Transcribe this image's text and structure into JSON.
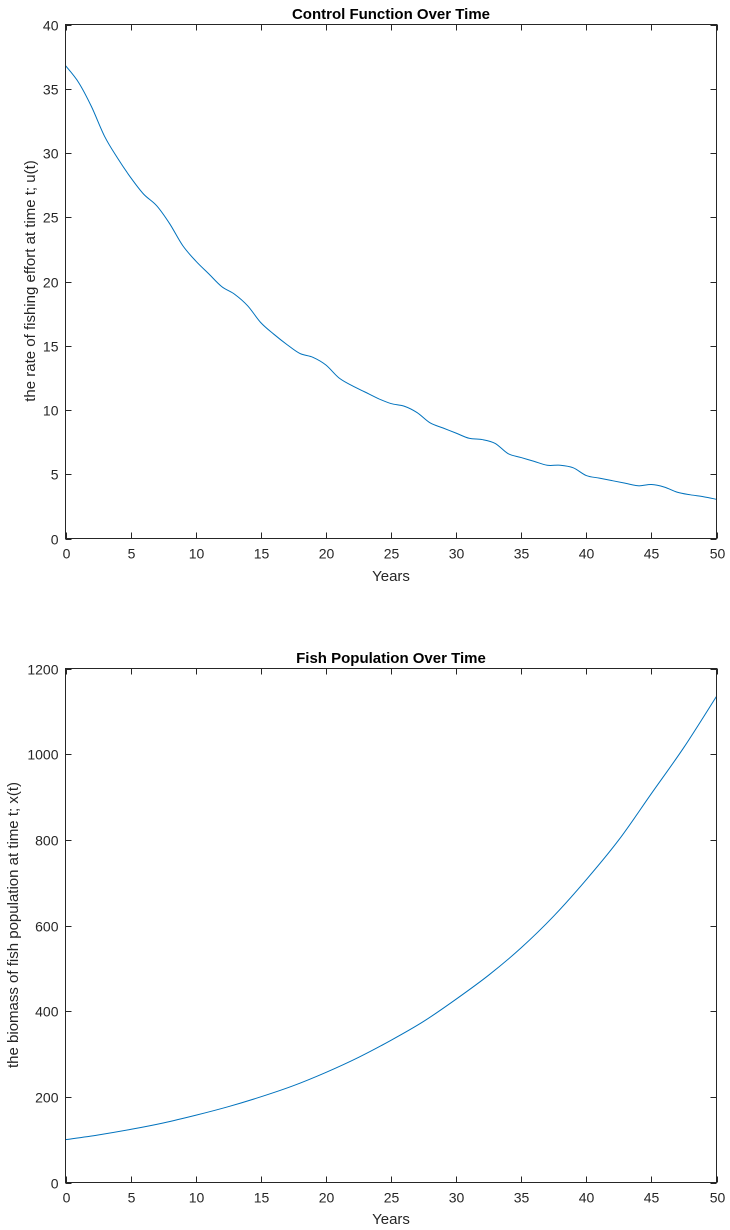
{
  "chart_data": [
    {
      "type": "line",
      "title": "Control Function Over Time",
      "xlabel": "Years",
      "ylabel": "the rate of fishing effort at time t; u(t)",
      "xlim": [
        0,
        50
      ],
      "ylim": [
        0,
        40
      ],
      "xticks": [
        0,
        5,
        10,
        15,
        20,
        25,
        30,
        35,
        40,
        45,
        50
      ],
      "yticks": [
        0,
        5,
        10,
        15,
        20,
        25,
        30,
        35,
        40
      ],
      "grid": false,
      "color": "#0072BD",
      "series": [
        {
          "x": [
            0,
            1,
            2,
            3,
            4,
            5,
            6,
            7,
            8,
            9,
            10,
            11,
            12,
            13,
            14,
            15,
            16,
            17,
            18,
            19,
            20,
            21,
            22,
            23,
            24,
            25,
            26,
            27,
            28,
            29,
            30,
            31,
            32,
            33,
            34,
            35,
            36,
            37,
            38,
            39,
            40,
            41,
            42,
            43,
            44,
            45,
            46,
            47,
            48,
            49,
            50
          ],
          "y": [
            36.8,
            35.5,
            33.6,
            31.3,
            29.6,
            28.1,
            26.8,
            25.9,
            24.5,
            22.8,
            21.6,
            20.6,
            19.6,
            19.0,
            18.1,
            16.8,
            15.9,
            15.1,
            14.4,
            14.1,
            13.5,
            12.5,
            11.9,
            11.4,
            10.9,
            10.5,
            10.3,
            9.8,
            9.0,
            8.6,
            8.2,
            7.8,
            7.7,
            7.4,
            6.6,
            6.3,
            6.0,
            5.7,
            5.7,
            5.5,
            4.9,
            4.7,
            4.5,
            4.3,
            4.1,
            4.2,
            4.0,
            3.6,
            3.4,
            3.25,
            3.05
          ]
        }
      ]
    },
    {
      "type": "line",
      "title": "Fish Population Over Time",
      "xlabel": "Years",
      "ylabel": "the biomass of fish population at time t; x(t)",
      "xlim": [
        0,
        50
      ],
      "ylim": [
        0,
        1200
      ],
      "xticks": [
        0,
        5,
        10,
        15,
        20,
        25,
        30,
        35,
        40,
        45,
        50
      ],
      "yticks": [
        0,
        200,
        400,
        600,
        800,
        1000,
        1200
      ],
      "grid": false,
      "color": "#0072BD",
      "series": [
        {
          "x": [
            0,
            2.5,
            5,
            7.5,
            10,
            12.5,
            15,
            17.5,
            20,
            22.5,
            25,
            27.5,
            30,
            32.5,
            35,
            37.5,
            40,
            42.5,
            45,
            47.5,
            50
          ],
          "y": [
            100,
            111,
            124,
            139,
            157,
            177,
            200,
            226,
            257,
            292,
            332,
            376,
            428,
            484,
            548,
            622,
            707,
            800,
            908,
            1016,
            1135
          ]
        }
      ]
    }
  ]
}
